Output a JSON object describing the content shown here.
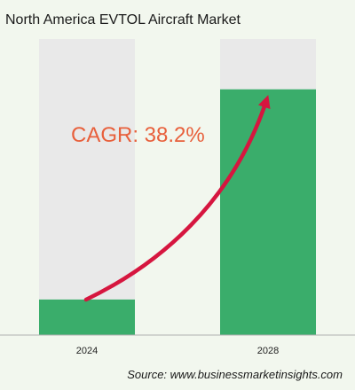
{
  "title": "North America EVTOL Aircraft Market",
  "source": "Source: www.businessmarketinsights.com",
  "annotation": "CAGR: 38.2%",
  "colors": {
    "background": "#f2f7ee",
    "bar_track": "#e9e9e9",
    "bar_fill": "#3aad6b",
    "annotation": "#e8603c",
    "arrow": "#d6163f"
  },
  "chart_data": {
    "type": "bar",
    "title": "North America EVTOL Aircraft Market",
    "categories": [
      "2024",
      "2028"
    ],
    "values": [
      12,
      83
    ],
    "ylim": [
      0,
      100
    ],
    "xlabel": "",
    "ylabel": "",
    "grid": false,
    "legend": "none",
    "annotation": "CAGR: 38.2%"
  }
}
